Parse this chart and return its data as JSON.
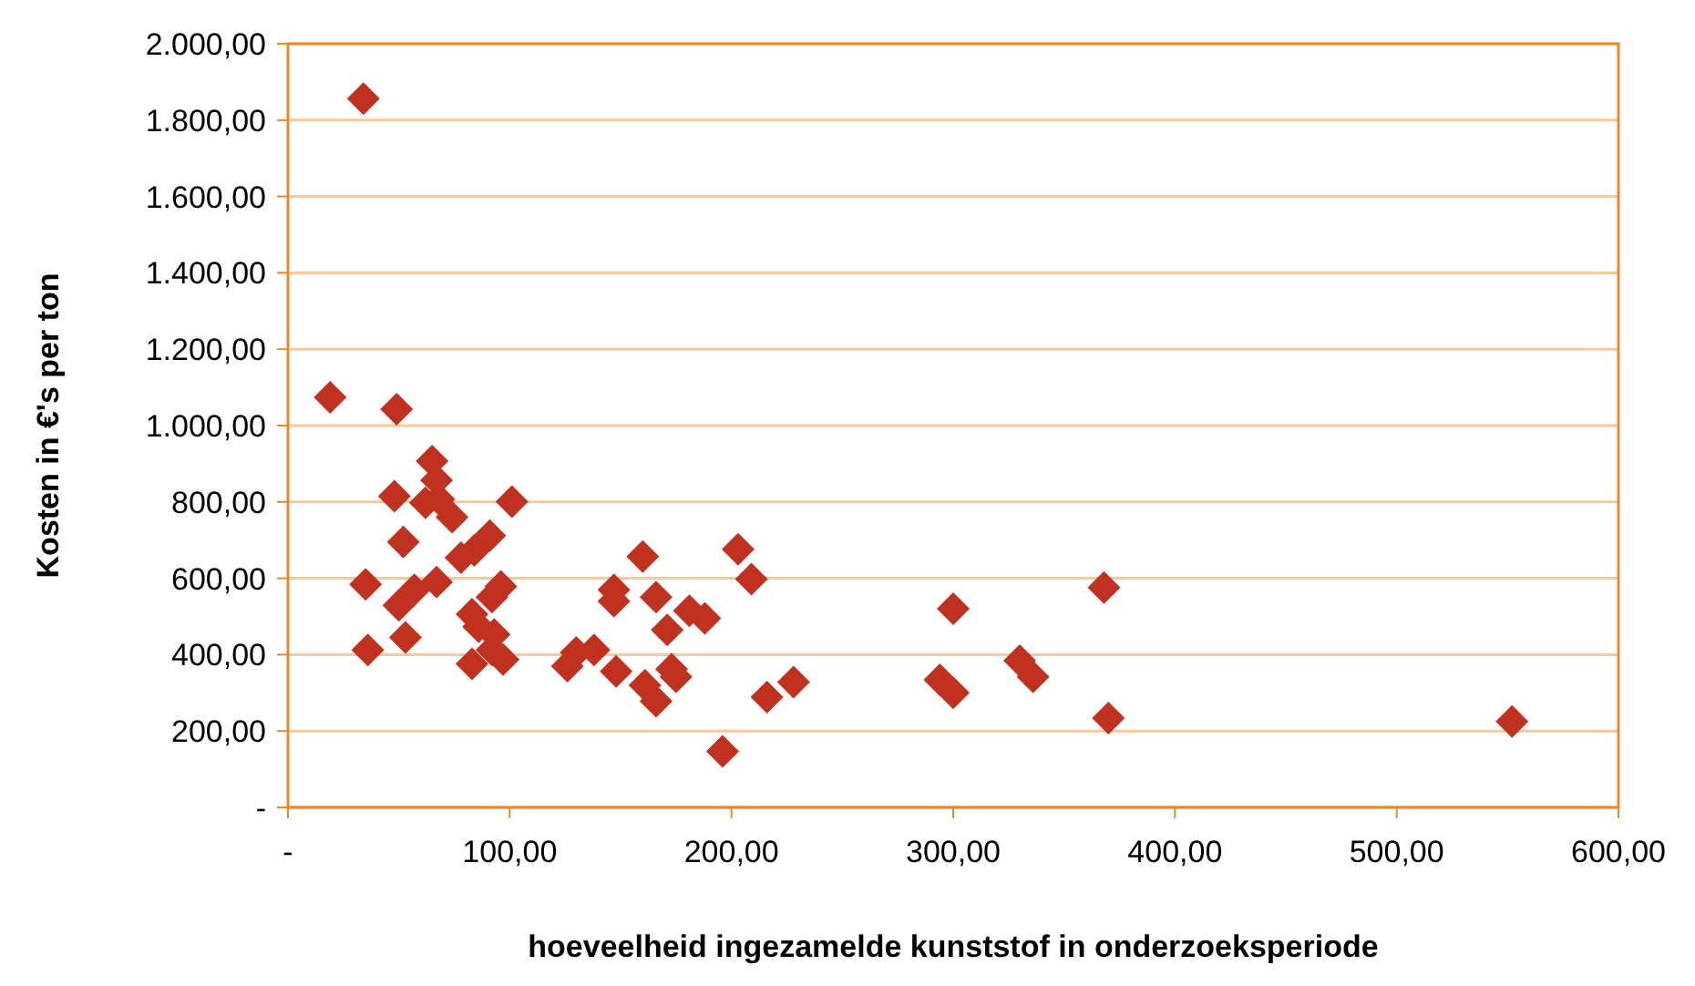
{
  "chart_data": {
    "type": "scatter",
    "xlabel": "hoeveelheid  ingezamelde kunststof in onderzoeksperiode",
    "ylabel": "Kosten in €'s per  ton",
    "xlim": [
      0,
      600
    ],
    "xticks": [
      {
        "value": 0,
        "label": "-"
      },
      {
        "value": 100,
        "label": "100,00"
      },
      {
        "value": 200,
        "label": "200,00"
      },
      {
        "value": 300,
        "label": "300,00"
      },
      {
        "value": 400,
        "label": "400,00"
      },
      {
        "value": 500,
        "label": "500,00"
      },
      {
        "value": 600,
        "label": "600,00"
      }
    ],
    "ylim": [
      0,
      2000
    ],
    "yticks": [
      {
        "value": 0,
        "label": "-"
      },
      {
        "value": 200,
        "label": "200,00"
      },
      {
        "value": 400,
        "label": "400,00"
      },
      {
        "value": 600,
        "label": "600,00"
      },
      {
        "value": 800,
        "label": "800,00"
      },
      {
        "value": 1000,
        "label": "1.000,00"
      },
      {
        "value": 1200,
        "label": "1.200,00"
      },
      {
        "value": 1400,
        "label": "1.400,00"
      },
      {
        "value": 1600,
        "label": "1.600,00"
      },
      {
        "value": 1800,
        "label": "1.800,00"
      },
      {
        "value": 2000,
        "label": "2.000,00"
      }
    ],
    "grid": "y",
    "marker": "diamond",
    "series": [
      {
        "color": "#c0311f",
        "x": [
          34,
          19,
          49,
          65,
          67,
          48,
          62,
          68,
          101,
          74,
          52,
          91,
          84,
          78,
          160,
          203,
          209,
          35,
          67,
          57,
          96,
          92,
          147,
          147,
          166,
          50,
          83,
          181,
          188,
          300,
          368,
          171,
          86,
          93,
          53,
          36,
          92,
          97,
          83,
          138,
          130,
          126,
          148,
          173,
          175,
          161,
          166,
          216,
          228,
          294,
          300,
          330,
          336,
          370,
          552,
          196
        ],
        "values": [
          1856,
          1074,
          1043,
          907,
          857,
          815,
          798,
          807,
          801,
          760,
          695,
          712,
          673,
          654,
          657,
          676,
          598,
          584,
          590,
          570,
          579,
          551,
          570,
          540,
          551,
          529,
          506,
          515,
          495,
          520,
          576,
          465,
          473,
          453,
          445,
          412,
          412,
          387,
          376,
          412,
          406,
          370,
          356,
          362,
          342,
          320,
          278,
          289,
          328,
          334,
          300,
          384,
          342,
          234,
          225,
          147
        ]
      }
    ]
  }
}
